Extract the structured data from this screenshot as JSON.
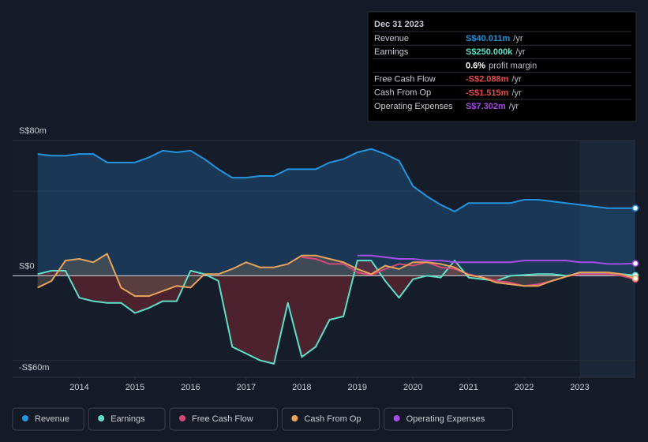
{
  "chart_data": {
    "type": "line",
    "x": [
      2013.25,
      2013.5,
      2013.75,
      2014,
      2014.25,
      2014.5,
      2014.75,
      2015,
      2015.25,
      2015.5,
      2015.75,
      2016,
      2016.25,
      2016.5,
      2016.75,
      2017,
      2017.25,
      2017.5,
      2017.75,
      2018,
      2018.25,
      2018.5,
      2018.75,
      2019,
      2019.25,
      2019.5,
      2019.75,
      2020,
      2020.25,
      2020.5,
      2020.75,
      2021,
      2021.25,
      2021.5,
      2021.75,
      2022,
      2022.25,
      2022.5,
      2022.75,
      2023,
      2023.25,
      2023.5,
      2023.75,
      2024
    ],
    "xlim": [
      2012.8,
      2024.0
    ],
    "xticks": [
      2014,
      2015,
      2016,
      2017,
      2018,
      2019,
      2020,
      2021,
      2022,
      2023
    ],
    "ylim": [
      -60,
      80
    ],
    "yticks": [
      {
        "value": 80,
        "label": "S$80m"
      },
      {
        "value": 0,
        "label": "S$0"
      },
      {
        "value": -60,
        "label": "-S$60m"
      }
    ],
    "ygrid": [
      50,
      -50
    ],
    "series": [
      {
        "name": "Revenue",
        "color": "#2394df",
        "values": [
          72,
          71,
          71,
          72,
          72,
          67,
          67,
          67,
          70,
          74,
          73,
          74,
          69,
          63,
          58,
          58,
          59,
          59,
          63,
          63,
          63,
          67,
          69,
          73,
          75,
          72,
          68,
          53,
          47,
          42,
          38,
          43,
          43,
          43,
          43,
          45,
          45,
          44,
          43,
          42,
          41,
          40,
          40,
          40.011
        ]
      },
      {
        "name": "Earnings",
        "color": "#5ee0c8",
        "values": [
          1,
          3,
          3,
          -13,
          -15,
          -16,
          -16,
          -22,
          -19,
          -15,
          -15,
          3,
          1,
          -3,
          -42,
          -46,
          -50,
          -52,
          -16,
          -48,
          -42,
          -26,
          -24,
          9,
          9,
          -3,
          -13,
          -2,
          0,
          -1,
          9,
          -1,
          -2,
          -3,
          0,
          0.5,
          1,
          1,
          0,
          1,
          1,
          1,
          1,
          0.25
        ]
      },
      {
        "name": "Free Cash Flow",
        "color": "#d4487a",
        "values": [
          null,
          null,
          null,
          null,
          null,
          null,
          null,
          null,
          null,
          null,
          null,
          null,
          null,
          null,
          null,
          null,
          null,
          null,
          null,
          11,
          10,
          7,
          7,
          2,
          0.5,
          4,
          7,
          6,
          8,
          5,
          4,
          1,
          -1,
          -3,
          -4,
          -6,
          -5,
          -3,
          -0.5,
          1,
          1,
          1,
          0,
          -2.088
        ]
      },
      {
        "name": "Cash From Op",
        "color": "#e9a35a",
        "values": [
          -7,
          -3,
          9,
          10,
          8,
          13,
          -7,
          -12,
          -12,
          -9,
          -6,
          -7,
          1,
          1,
          4,
          8,
          5,
          5,
          7,
          12,
          12,
          10,
          8,
          4,
          1,
          6,
          4,
          8,
          8,
          7,
          5,
          0.5,
          -1,
          -4,
          -5,
          -6,
          -6,
          -3,
          -0.5,
          2,
          2,
          2,
          1,
          -1.515
        ]
      },
      {
        "name": "Operating Expenses",
        "color": "#a54de6",
        "values": [
          null,
          null,
          null,
          null,
          null,
          null,
          null,
          null,
          null,
          null,
          null,
          null,
          null,
          null,
          null,
          null,
          null,
          null,
          null,
          null,
          null,
          null,
          null,
          12,
          12,
          11,
          10,
          10,
          9,
          9,
          8,
          8,
          8,
          8,
          8,
          9,
          9,
          9,
          9,
          8,
          8,
          7,
          7,
          7.302
        ]
      }
    ],
    "tooltip": {
      "date": "Dec 31 2023",
      "rows": [
        {
          "label": "Revenue",
          "value": "S$40.011m",
          "unit": "/yr",
          "color": "#2394df"
        },
        {
          "label": "Earnings",
          "value": "S$250.000k",
          "unit": "/yr",
          "color": "#5ee0c8"
        },
        {
          "value": "0.6%",
          "unit": "profit margin",
          "color": "#ffffff"
        },
        {
          "label": "Free Cash Flow",
          "value": "-S$2.088m",
          "unit": "/yr",
          "color": "#e64a4a"
        },
        {
          "label": "Cash From Op",
          "value": "-S$1.515m",
          "unit": "/yr",
          "color": "#e64a4a"
        },
        {
          "label": "Operating Expenses",
          "value": "S$7.302m",
          "unit": "/yr",
          "color": "#a54de6"
        }
      ]
    }
  }
}
